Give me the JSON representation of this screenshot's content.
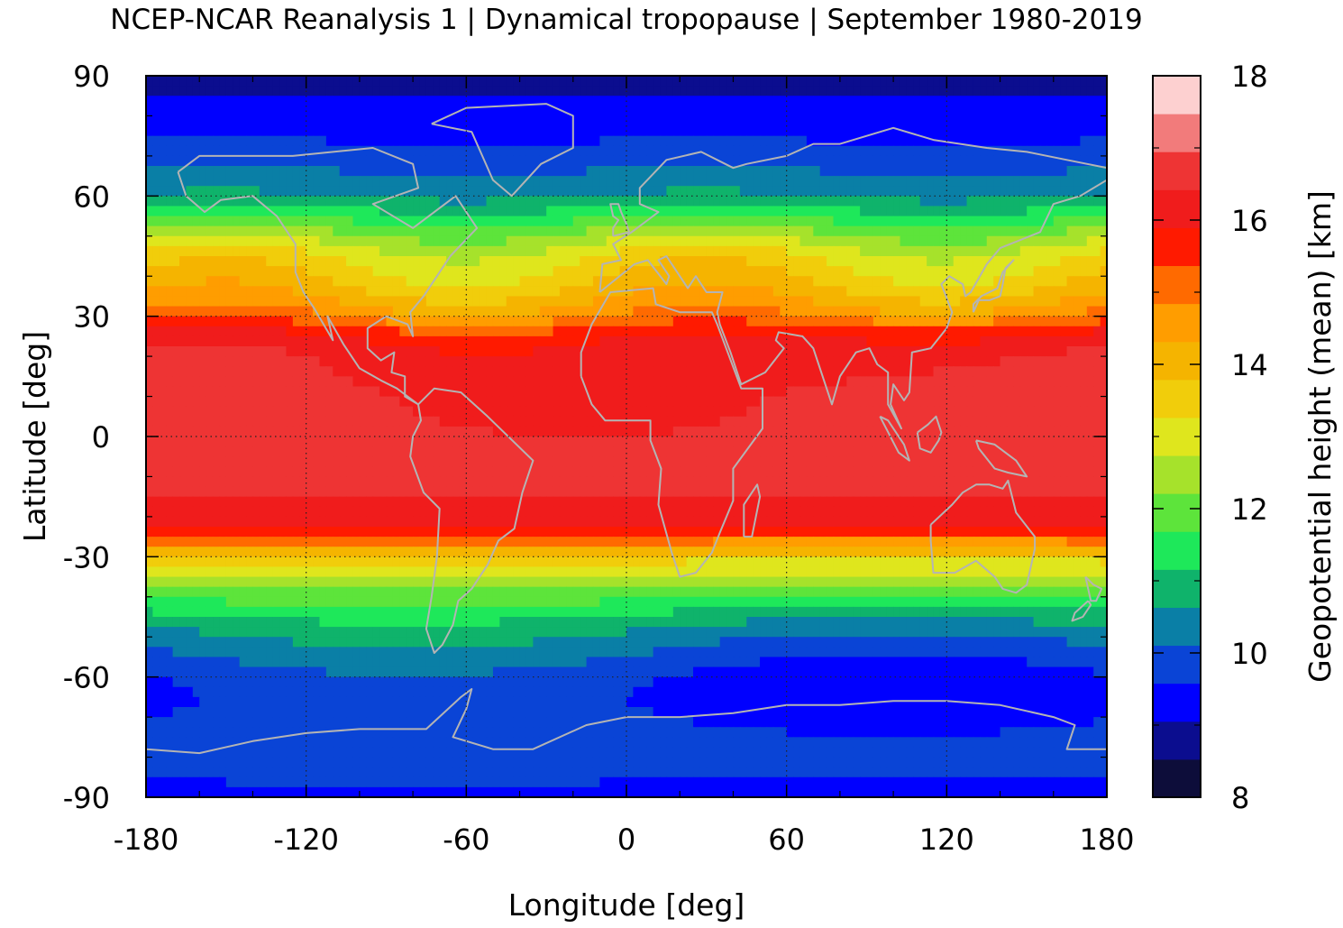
{
  "chart_data": {
    "type": "heatmap",
    "title": "NCEP-NCAR Reanalysis 1 | Dynamical tropopause | September 1980-2019",
    "xlabel": "Longitude [deg]",
    "ylabel": "Latitude [deg]",
    "colorbar_label": "Geopotential height (mean) [km]",
    "xlim": [
      -180,
      180
    ],
    "ylim": [
      -90,
      90
    ],
    "x_ticks": [
      -180,
      -120,
      -60,
      0,
      60,
      120,
      180
    ],
    "x_tick_labels": [
      "-180",
      "-120",
      "-60",
      "0",
      "60",
      "120",
      "180"
    ],
    "y_ticks": [
      90,
      60,
      30,
      0,
      -30,
      -60,
      -90
    ],
    "y_tick_labels": [
      "90",
      "60",
      "30",
      "0",
      "-30",
      "-60",
      "-90"
    ],
    "colorbar_range": [
      8,
      18
    ],
    "colorbar_ticks": [
      18,
      16,
      14,
      12,
      10,
      8
    ],
    "colorbar_tick_labels": [
      "18",
      "16",
      "14",
      "12",
      "10",
      "8"
    ],
    "grid": true,
    "coastline_color": "#b4b4b4",
    "colormap": [
      "#0d0d3a",
      "#0b0d8f",
      "#0000ff",
      "#0a44d6",
      "#0a7fa6",
      "#0fb36b",
      "#1ee85a",
      "#5de43b",
      "#a6e22b",
      "#dfe61d",
      "#f1cd0b",
      "#f5b400",
      "#ff9d00",
      "#ff6a00",
      "#ff1a00",
      "#f01c1c",
      "#ee3434",
      "#f27b7b",
      "#fdd0d0"
    ],
    "zonal_mean_profile": {
      "latitude": [
        90,
        85,
        80,
        75,
        70,
        65,
        60,
        55,
        50,
        45,
        40,
        35,
        30,
        25,
        20,
        15,
        10,
        5,
        0,
        -5,
        -10,
        -15,
        -20,
        -25,
        -30,
        -35,
        -40,
        -45,
        -50,
        -55,
        -60,
        -65,
        -70,
        -75,
        -80,
        -85,
        -90
      ],
      "height_km": [
        8.9,
        9.1,
        9.3,
        9.5,
        9.8,
        10.2,
        10.6,
        11.5,
        12.4,
        13.2,
        13.6,
        14.1,
        14.8,
        15.9,
        16.3,
        16.4,
        16.5,
        16.5,
        16.5,
        16.5,
        16.5,
        16.4,
        16.2,
        15.3,
        13.5,
        12.6,
        11.8,
        11.0,
        10.4,
        10.0,
        9.6,
        9.5,
        9.6,
        9.7,
        9.7,
        9.6,
        9.5
      ]
    }
  }
}
